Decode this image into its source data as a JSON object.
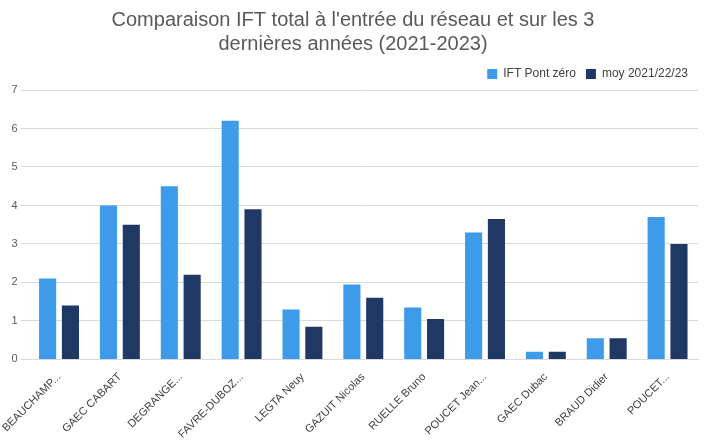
{
  "chart_data": {
    "type": "bar",
    "title": [
      "Comparaison IFT total à l'entrée du réseau et sur les 3",
      "dernières années (2021-2023)"
    ],
    "categories": [
      "BEAUCHAMP...",
      "GAEC CABART",
      "DEGRANGE...",
      "FAVRE-DUBOZ...",
      "LEGTA Neuy",
      "GAZUIT Nicolas",
      "RUELLE Bruno",
      "POUCET Jean...",
      "GAEC Dubac",
      "BRAUD Didier",
      "POUCET..."
    ],
    "series": [
      {
        "name": "IFT Pont zéro",
        "color": "#3d9be9",
        "values": [
          2.1,
          4.0,
          4.5,
          6.2,
          1.3,
          1.95,
          1.35,
          3.3,
          0.2,
          0.55,
          3.7
        ]
      },
      {
        "name": "moy 2021/22/23",
        "color": "#203864",
        "values": [
          1.4,
          3.5,
          2.2,
          3.9,
          0.85,
          1.6,
          1.05,
          3.65,
          0.2,
          0.55,
          3.0
        ]
      }
    ],
    "ylim": [
      0,
      7
    ],
    "yticks": [
      0,
      1,
      2,
      3,
      4,
      5,
      6,
      7
    ],
    "grid": true,
    "legend": "top-right"
  }
}
